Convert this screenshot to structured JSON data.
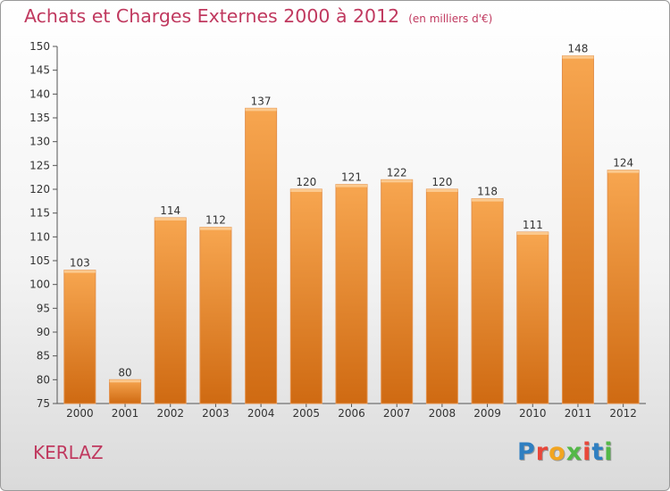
{
  "title": "Achats et Charges Externes 2000 à 2012",
  "unit": "(en milliers d'€)",
  "place": "KERLAZ",
  "logo": [
    "P",
    "r",
    "o",
    "x",
    "i",
    "t",
    "i"
  ],
  "logo_colors": [
    "#2f7fc1",
    "#e8473a",
    "#f2a520",
    "#54b848",
    "#e8473a",
    "#2f7fc1",
    "#54b848"
  ],
  "colors": {
    "bar_light": "#f7a650",
    "bar_dark": "#cf6a12",
    "title": "#c0395f"
  },
  "chart_data": {
    "type": "bar",
    "categories": [
      "2000",
      "2001",
      "2002",
      "2003",
      "2004",
      "2005",
      "2006",
      "2007",
      "2008",
      "2009",
      "2010",
      "2011",
      "2012"
    ],
    "values": [
      103,
      80,
      114,
      112,
      137,
      120,
      121,
      122,
      120,
      118,
      111,
      148,
      124
    ],
    "ylim": [
      75,
      150
    ],
    "yticks": [
      75,
      80,
      85,
      90,
      95,
      100,
      105,
      110,
      115,
      120,
      125,
      130,
      135,
      140,
      145,
      150
    ],
    "grid": false
  }
}
